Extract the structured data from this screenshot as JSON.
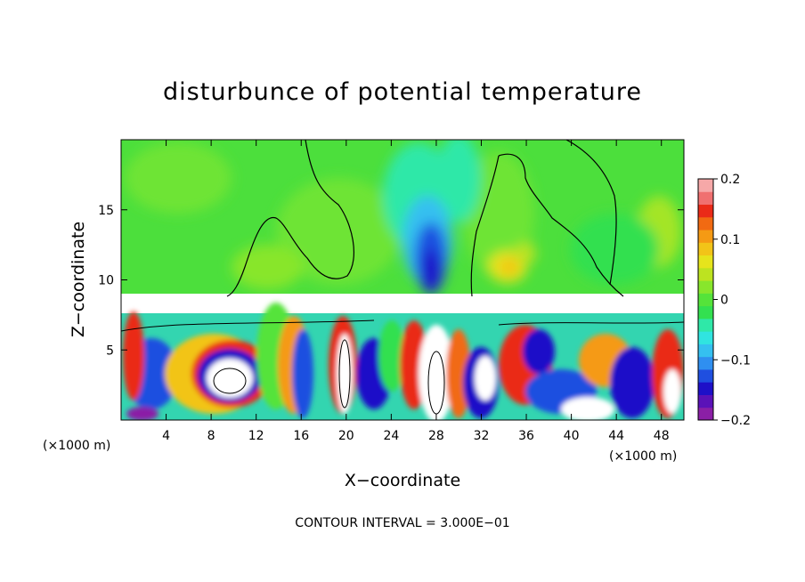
{
  "chart_data": {
    "type": "heatmap",
    "title": "disturbunce of potential temperature",
    "xlabel": "X−coordinate",
    "ylabel": "Z−coordinate",
    "x_unit": "(×1000 m)",
    "z_unit": "(×1000 m)",
    "xlim": [
      0,
      50
    ],
    "ylim": [
      0,
      20
    ],
    "x_ticks": [
      4,
      8,
      12,
      16,
      20,
      24,
      28,
      32,
      36,
      40,
      44,
      48
    ],
    "x_tick_labels": [
      "4",
      "8",
      "12",
      "16",
      "20",
      "24",
      "28",
      "32",
      "36",
      "40",
      "44",
      "48"
    ],
    "y_ticks": [
      5,
      10,
      15
    ],
    "y_tick_labels": [
      "5",
      "10",
      "15"
    ],
    "colorbar": {
      "min": -0.2,
      "max": 0.2,
      "ticks": [
        0.2,
        0.1,
        0,
        -0.1,
        -0.2
      ],
      "tick_labels": [
        "0.2",
        "0.1",
        "0",
        "−0.1",
        "−0.2"
      ],
      "colors": [
        "#8b1fa6",
        "#5a12b8",
        "#1e10c8",
        "#1f4fe0",
        "#2f8ff0",
        "#35c0f0",
        "#30e4e0",
        "#2fe8a8",
        "#33e050",
        "#55e33a",
        "#88e62c",
        "#bde320",
        "#e6e41c",
        "#f2c418",
        "#f59a14",
        "#f16a12",
        "#ea2b18",
        "#f07070",
        "#f6a8a8"
      ]
    },
    "annotation": "CONTOUR INTERVAL = 3.000E−01",
    "field_description": [
      {
        "region": "upper layer z 9-20",
        "value_range": [
          -0.02,
          0.08
        ]
      },
      {
        "region": "cold anomaly x 26-30 z 9-15",
        "min_value": -0.18
      },
      {
        "region": "warm patch x 33-37 z 9-12",
        "max_value": 0.09
      },
      {
        "region": "lower layer z 0-7.5",
        "value_range": [
          -0.3,
          0.3
        ]
      }
    ]
  }
}
